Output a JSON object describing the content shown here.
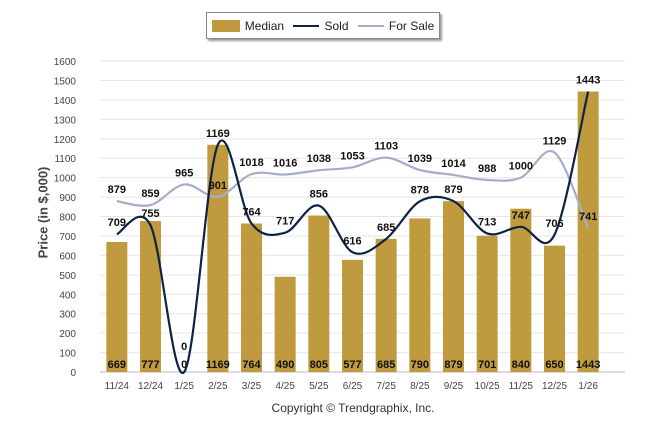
{
  "chart_data": {
    "type": "bar",
    "title": "",
    "ylabel": "Price (in $,000)",
    "xlabel": "",
    "ylim": [
      0,
      1600
    ],
    "yticks": [
      0,
      100,
      200,
      300,
      400,
      500,
      600,
      700,
      800,
      900,
      1000,
      1100,
      1200,
      1300,
      1400,
      1500,
      1600
    ],
    "grid": true,
    "legend_position": "top-center",
    "categories": [
      "11/24",
      "12/24",
      "1/25",
      "2/25",
      "3/25",
      "4/25",
      "5/25",
      "6/25",
      "7/25",
      "8/25",
      "9/25",
      "10/25",
      "11/25",
      "12/25",
      "1/26"
    ],
    "series": [
      {
        "name": "Median",
        "type": "bar",
        "color": "#c09a3f",
        "values": [
          669,
          777,
          0,
          1169,
          764,
          490,
          805,
          577,
          685,
          790,
          879,
          701,
          840,
          650,
          1443
        ]
      },
      {
        "name": "Sold",
        "type": "line",
        "color": "#0d2344",
        "values": [
          709,
          755,
          0,
          1169,
          764,
          717,
          856,
          616,
          685,
          878,
          879,
          713,
          747,
          706,
          1443
        ]
      },
      {
        "name": "For Sale",
        "type": "line",
        "color": "#a4aec8",
        "values": [
          879,
          859,
          965,
          901,
          1018,
          1016,
          1038,
          1053,
          1103,
          1039,
          1014,
          988,
          1000,
          1129,
          741
        ]
      }
    ]
  },
  "copyright": "Copyright © Trendgraphix, Inc."
}
